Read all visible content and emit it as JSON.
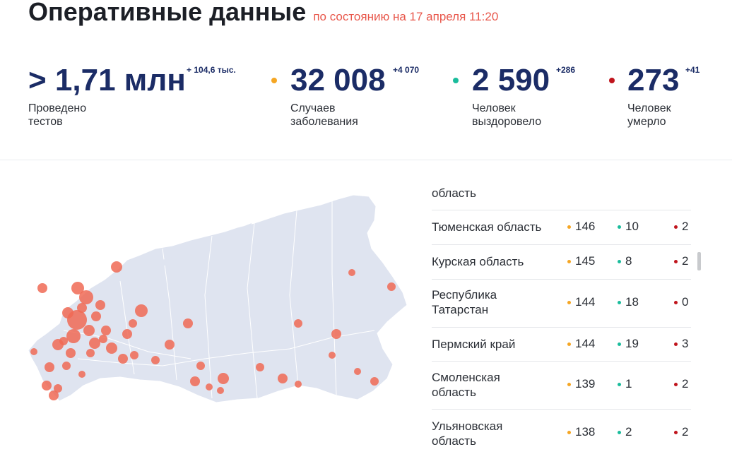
{
  "header": {
    "title": "Оперативные данные",
    "subtitle": "по состоянию на 17 апреля 11:20"
  },
  "stats": [
    {
      "value": "> 1,71 млн",
      "delta": "+ 104,6 тыс.",
      "label_line1": "Проведено",
      "label_line2": "тестов",
      "dot_color": ""
    },
    {
      "value": "32 008",
      "delta": "+4 070",
      "label_line1": "Случаев",
      "label_line2": "заболевания",
      "dot_color": "#f5a623"
    },
    {
      "value": "2 590",
      "delta": "+286",
      "label_line1": "Человек",
      "label_line2": "выздоровело",
      "dot_color": "#1abc9c"
    },
    {
      "value": "273",
      "delta": "+41",
      "label_line1": "Человек",
      "label_line2": "умерло",
      "dot_color": "#c0141c"
    }
  ],
  "colors": {
    "cases": "#f5a623",
    "recovered": "#1abc9c",
    "deaths": "#c0141c",
    "map_land": "#dfe4f0",
    "map_bubble": "#f06a55",
    "accent_blue": "#1b2c66"
  },
  "table": {
    "partial_top": "область",
    "rows": [
      {
        "name_line1": "Тюменская область",
        "name_line2": "",
        "cases": "146",
        "recovered": "10",
        "deaths": "2"
      },
      {
        "name_line1": "Курская область",
        "name_line2": "",
        "cases": "145",
        "recovered": "8",
        "deaths": "2"
      },
      {
        "name_line1": "Республика",
        "name_line2": "Татарстан",
        "cases": "144",
        "recovered": "18",
        "deaths": "0"
      },
      {
        "name_line1": "Пермский край",
        "name_line2": "",
        "cases": "144",
        "recovered": "19",
        "deaths": "3"
      },
      {
        "name_line1": "Смоленская",
        "name_line2": "область",
        "cases": "139",
        "recovered": "1",
        "deaths": "2"
      },
      {
        "name_line1": "Ульяновская",
        "name_line2": "область",
        "cases": "138",
        "recovered": "2",
        "deaths": "2"
      }
    ]
  }
}
